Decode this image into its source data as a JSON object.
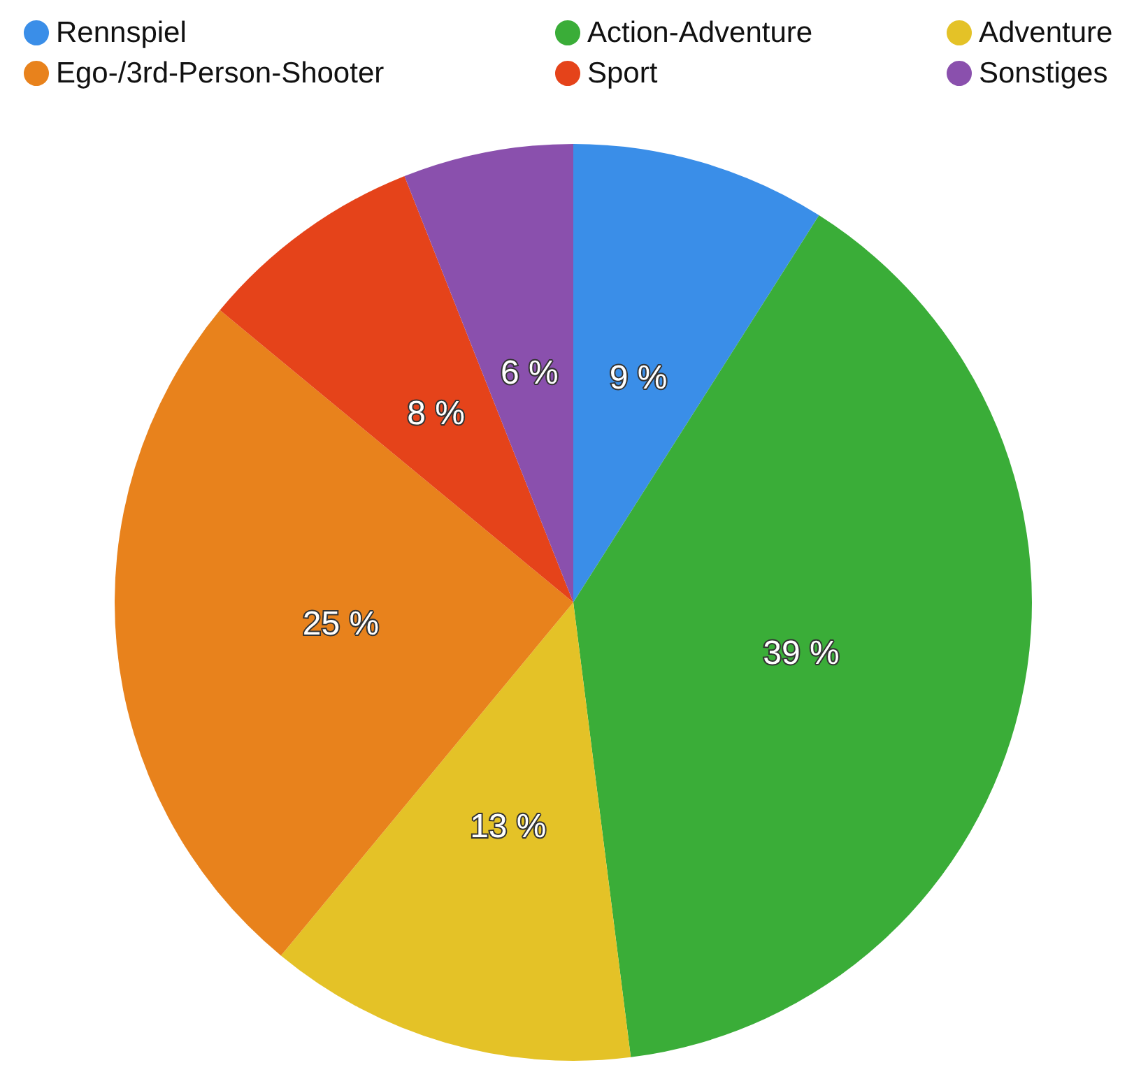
{
  "chart_data": {
    "type": "pie",
    "categories": [
      "Rennspiel",
      "Action-Adventure",
      "Adventure",
      "Ego-/3rd-Person-Shooter",
      "Sport",
      "Sonstiges"
    ],
    "values": [
      9,
      39,
      13,
      25,
      8,
      6
    ],
    "colors": [
      "#3a8ee8",
      "#3aad38",
      "#e4c227",
      "#e8821c",
      "#e5431a",
      "#8a50ad"
    ],
    "value_labels": [
      "9 %",
      "39 %",
      "13 %",
      "25 %",
      "8 %",
      "6 %"
    ],
    "legend": "top"
  }
}
